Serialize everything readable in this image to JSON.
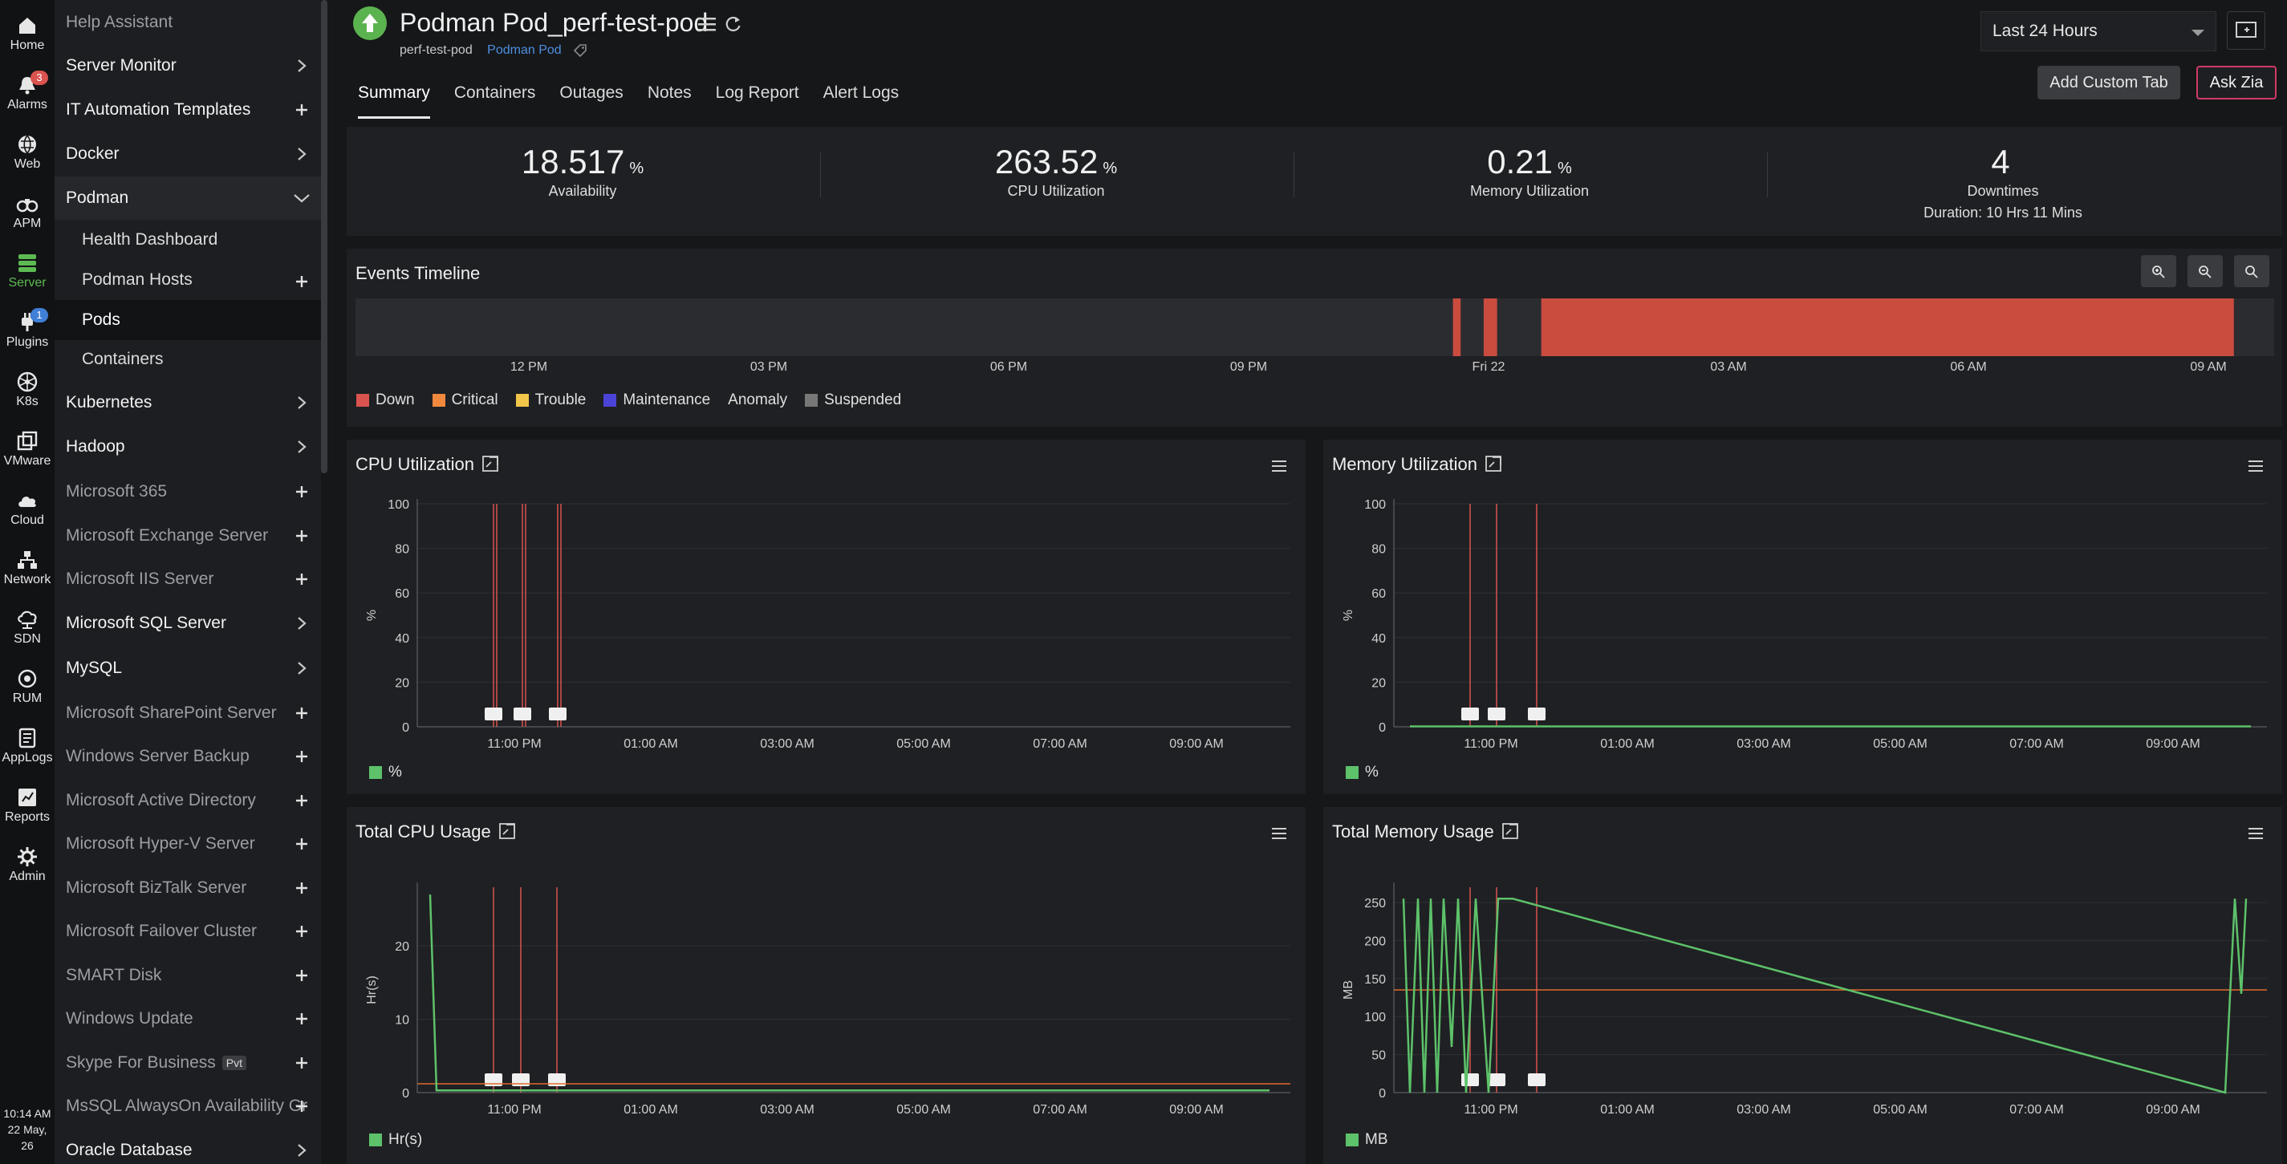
{
  "rail": {
    "items": [
      {
        "label": "Home",
        "icon": "home-icon"
      },
      {
        "label": "Alarms",
        "icon": "bell-icon",
        "badge": "3"
      },
      {
        "label": "Web",
        "icon": "globe-icon"
      },
      {
        "label": "APM",
        "icon": "binoculars-icon"
      },
      {
        "label": "Server",
        "icon": "server-icon"
      },
      {
        "label": "Plugins",
        "icon": "plug-icon",
        "badge": "1"
      },
      {
        "label": "K8s",
        "icon": "k8s-icon"
      },
      {
        "label": "VMware",
        "icon": "vmware-icon"
      },
      {
        "label": "Cloud",
        "icon": "cloud-icon"
      },
      {
        "label": "Network",
        "icon": "network-icon"
      },
      {
        "label": "SDN",
        "icon": "sdn-icon"
      },
      {
        "label": "RUM",
        "icon": "rum-icon"
      },
      {
        "label": "AppLogs",
        "icon": "applogs-icon"
      },
      {
        "label": "Reports",
        "icon": "reports-icon"
      },
      {
        "label": "Admin",
        "icon": "gear-icon"
      }
    ],
    "time": "10:14 AM",
    "date": "22 May, 26"
  },
  "menu": {
    "items": [
      {
        "label": "Help Assistant",
        "style": "dim",
        "icon": "none"
      },
      {
        "label": "Server Monitor",
        "style": "",
        "icon": "chevron"
      },
      {
        "label": "IT Automation Templates",
        "style": "",
        "icon": "plus"
      },
      {
        "label": "Docker",
        "style": "",
        "icon": "chevron"
      },
      {
        "label": "Podman",
        "style": "open",
        "icon": "chevron-down"
      },
      {
        "label": "Health Dashboard",
        "style": "sub",
        "icon": "none"
      },
      {
        "label": "Podman Hosts",
        "style": "sub",
        "icon": "plus"
      },
      {
        "label": "Pods",
        "style": "sub sel",
        "icon": "none"
      },
      {
        "label": "Containers",
        "style": "sub",
        "icon": "none"
      },
      {
        "label": "Kubernetes",
        "style": "",
        "icon": "chevron"
      },
      {
        "label": "Hadoop",
        "style": "",
        "icon": "chevron"
      },
      {
        "label": "Microsoft 365",
        "style": "dim",
        "icon": "plus"
      },
      {
        "label": "Microsoft Exchange Server",
        "style": "dim",
        "icon": "plus"
      },
      {
        "label": "Microsoft IIS Server",
        "style": "dim",
        "icon": "plus"
      },
      {
        "label": "Microsoft SQL Server",
        "style": "",
        "icon": "chevron"
      },
      {
        "label": "MySQL",
        "style": "",
        "icon": "chevron"
      },
      {
        "label": "Microsoft SharePoint Server",
        "style": "dim",
        "icon": "plus"
      },
      {
        "label": "Windows Server Backup",
        "style": "dim",
        "icon": "plus"
      },
      {
        "label": "Microsoft Active Directory",
        "style": "dim",
        "icon": "plus"
      },
      {
        "label": "Microsoft Hyper-V Server",
        "style": "dim",
        "icon": "plus"
      },
      {
        "label": "Microsoft BizTalk Server",
        "style": "dim",
        "icon": "plus"
      },
      {
        "label": "Microsoft Failover Cluster",
        "style": "dim",
        "icon": "plus"
      },
      {
        "label": "SMART Disk",
        "style": "dim",
        "icon": "plus"
      },
      {
        "label": "Windows Update",
        "style": "dim",
        "icon": "plus"
      },
      {
        "label": "Skype For Business",
        "style": "dim",
        "icon": "plus",
        "tag": "Pvt"
      },
      {
        "label": "MsSQL AlwaysOn Availability Gr",
        "style": "dim",
        "icon": "plus"
      },
      {
        "label": "Oracle Database",
        "style": "",
        "icon": "chevron"
      }
    ]
  },
  "header": {
    "title": "Podman Pod_perf-test-pod",
    "subtitle": "perf-test-pod",
    "type_link": "Podman Pod",
    "tabs": [
      "Summary",
      "Containers",
      "Outages",
      "Notes",
      "Log Report",
      "Alert Logs"
    ],
    "active_tab": "Summary",
    "period": "Last 24 Hours",
    "add_custom_tab": "Add Custom Tab",
    "ask_zia": "Ask Zia"
  },
  "kpi": [
    {
      "value": "18.517",
      "unit": "%",
      "label": "Availability",
      "sub": ""
    },
    {
      "value": "263.52",
      "unit": "%",
      "label": "CPU Utilization",
      "sub": ""
    },
    {
      "value": "0.21",
      "unit": "%",
      "label": "Memory Utilization",
      "sub": ""
    },
    {
      "value": "4",
      "unit": "",
      "label": "Downtimes",
      "sub": "Duration: 10 Hrs 11 Mins"
    }
  ],
  "timeline": {
    "title": "Events Timeline",
    "ticks": [
      "12 PM",
      "03 PM",
      "06 PM",
      "09 PM",
      "Fri 22",
      "03 AM",
      "06 AM",
      "09 AM"
    ],
    "legend": [
      {
        "label": "Down",
        "color": "#d9534f"
      },
      {
        "label": "Critical",
        "color": "#f0883e"
      },
      {
        "label": "Trouble",
        "color": "#f3c64a"
      },
      {
        "label": "Maintenance",
        "color": "#4b43d8"
      },
      {
        "label": "Anomaly",
        "color": ""
      },
      {
        "label": "Suspended",
        "color": "#777777"
      }
    ],
    "down_color": "#c94c3f"
  },
  "panels": {
    "cpu": {
      "title": "CPU Utilization",
      "ylabel": "%",
      "legend": "%"
    },
    "mem": {
      "title": "Memory Utilization",
      "ylabel": "%",
      "legend": "%"
    },
    "tcpu": {
      "title": "Total CPU Usage",
      "ylabel": "Hr(s)",
      "legend": "Hr(s)"
    },
    "tmem": {
      "title": "Total Memory Usage",
      "ylabel": "MB",
      "legend": "MB"
    }
  },
  "chart_data": [
    {
      "type": "line",
      "title": "CPU Utilization",
      "ylabel": "%",
      "ylim": [
        0,
        100
      ],
      "yticks": [
        0,
        20,
        40,
        60,
        80,
        100
      ],
      "xticks": [
        "11:00 PM",
        "01:00 AM",
        "03:00 AM",
        "05:00 AM",
        "07:00 AM",
        "09:00 AM"
      ],
      "series": [
        {
          "name": "%",
          "color": "#5dc26a",
          "values": []
        }
      ],
      "event_markers": [
        3,
        4,
        5
      ],
      "grid": true
    },
    {
      "type": "line",
      "title": "Memory Utilization",
      "ylabel": "%",
      "ylim": [
        0,
        100
      ],
      "yticks": [
        0,
        20,
        40,
        60,
        80,
        100
      ],
      "xticks": [
        "11:00 PM",
        "01:00 AM",
        "03:00 AM",
        "05:00 AM",
        "07:00 AM",
        "09:00 AM"
      ],
      "series": [
        {
          "name": "%",
          "color": "#5dc26a",
          "values": [
            0.2,
            0.2
          ]
        }
      ],
      "event_markers": [
        3,
        3,
        3
      ],
      "grid": true
    },
    {
      "type": "line",
      "title": "Total CPU Usage",
      "ylabel": "Hr(s)",
      "ylim": [
        0,
        28
      ],
      "yticks": [
        0,
        10,
        20
      ],
      "xticks": [
        "11:00 PM",
        "01:00 AM",
        "03:00 AM",
        "05:00 AM",
        "07:00 AM",
        "09:00 AM"
      ],
      "series": [
        {
          "name": "Hr(s)",
          "color": "#5dc26a",
          "values": [
            27,
            0.3,
            0.3,
            0.3,
            0.3,
            0.3,
            0.3,
            0.3
          ]
        }
      ],
      "threshold": 1.2,
      "event_markers": [
        3,
        3,
        3
      ],
      "grid": true
    },
    {
      "type": "line",
      "title": "Total Memory Usage",
      "ylabel": "MB",
      "ylim": [
        0,
        270
      ],
      "yticks": [
        0,
        50,
        100,
        150,
        200,
        250
      ],
      "xticks": [
        "11:00 PM",
        "01:00 AM",
        "03:00 AM",
        "05:00 AM",
        "07:00 AM",
        "09:00 AM"
      ],
      "series": [
        {
          "name": "MB",
          "color": "#5dc26a",
          "values": [
            255,
            0,
            255,
            0,
            255,
            0,
            255,
            60,
            255,
            0,
            255,
            0,
            255,
            255,
            0,
            255,
            130,
            255
          ]
        }
      ],
      "threshold": 135,
      "event_markers": [
        3,
        3,
        3
      ],
      "grid": true
    }
  ]
}
